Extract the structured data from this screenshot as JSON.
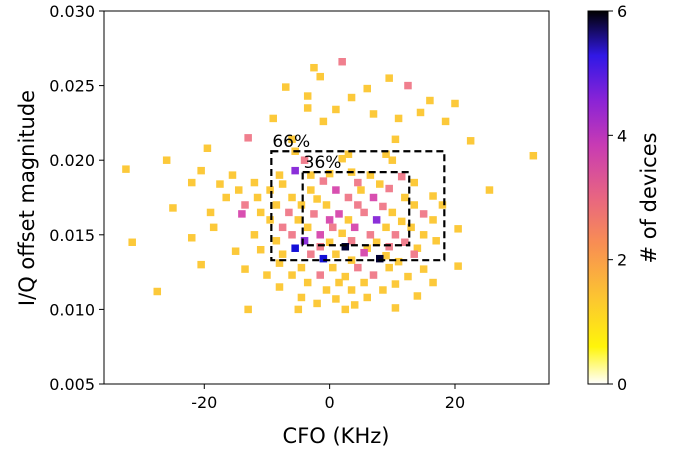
{
  "chart_data": {
    "type": "heatmap",
    "title": "",
    "xlabel": "CFO (KHz)",
    "ylabel": "I/Q offset magnitude",
    "xlim": [
      -36,
      35
    ],
    "ylim": [
      0.005,
      0.03
    ],
    "xticks": [
      -20,
      0,
      20
    ],
    "xtick_labels": [
      "-20",
      "0",
      "20"
    ],
    "yticks": [
      0.005,
      0.01,
      0.015,
      0.02,
      0.025,
      0.03
    ],
    "ytick_labels": [
      "0.005",
      "0.010",
      "0.015",
      "0.020",
      "0.025",
      "0.030"
    ],
    "colorbar": {
      "label": "# of devices",
      "min": 0,
      "max": 6,
      "ticks": [
        0,
        2,
        4,
        6
      ],
      "tick_labels": [
        "0",
        "2",
        "4",
        "6"
      ],
      "colormap": "plasma_r"
    },
    "bin_width": 1.2,
    "bin_height": 0.0005,
    "cells": [
      [
        2.0,
        0.0266,
        2
      ],
      [
        -2.5,
        0.0262,
        1
      ],
      [
        -1.5,
        0.0256,
        1
      ],
      [
        9.5,
        0.0255,
        1
      ],
      [
        12.5,
        0.025,
        2
      ],
      [
        -7.0,
        0.0249,
        1
      ],
      [
        6.0,
        0.0248,
        1
      ],
      [
        -3.5,
        0.0243,
        1
      ],
      [
        3.5,
        0.0242,
        1
      ],
      [
        16.0,
        0.024,
        1
      ],
      [
        20.0,
        0.0238,
        1
      ],
      [
        -3.5,
        0.0235,
        1
      ],
      [
        1.0,
        0.0234,
        1
      ],
      [
        7.0,
        0.0231,
        1
      ],
      [
        14.5,
        0.0232,
        1
      ],
      [
        -9.0,
        0.0228,
        1
      ],
      [
        -1.0,
        0.0226,
        1
      ],
      [
        11.0,
        0.0228,
        1
      ],
      [
        18.5,
        0.0226,
        1
      ],
      [
        -13.0,
        0.0215,
        2
      ],
      [
        -6.0,
        0.0214,
        1
      ],
      [
        10.5,
        0.0214,
        1
      ],
      [
        22.5,
        0.0213,
        1
      ],
      [
        -19.5,
        0.0208,
        1
      ],
      [
        -5.5,
        0.0206,
        1
      ],
      [
        3.0,
        0.0204,
        1
      ],
      [
        9.0,
        0.0204,
        1
      ],
      [
        -26.0,
        0.02,
        1
      ],
      [
        -4.0,
        0.02,
        2
      ],
      [
        2.0,
        0.0201,
        1
      ],
      [
        10.0,
        0.02,
        1
      ],
      [
        32.5,
        0.0203,
        1
      ],
      [
        -32.5,
        0.0194,
        1
      ],
      [
        -20.5,
        0.0193,
        1
      ],
      [
        -15.5,
        0.019,
        1
      ],
      [
        -8.0,
        0.019,
        1
      ],
      [
        -5.5,
        0.0193,
        4
      ],
      [
        -3.0,
        0.019,
        1
      ],
      [
        0.0,
        0.0191,
        1
      ],
      [
        3.5,
        0.0192,
        1
      ],
      [
        6.5,
        0.019,
        1
      ],
      [
        11.5,
        0.0189,
        2
      ],
      [
        -22.0,
        0.0185,
        1
      ],
      [
        -17.5,
        0.0184,
        1
      ],
      [
        -12.0,
        0.0185,
        1
      ],
      [
        -7.5,
        0.0184,
        1
      ],
      [
        -1.0,
        0.0186,
        2
      ],
      [
        4.5,
        0.0185,
        2
      ],
      [
        8.0,
        0.0184,
        1
      ],
      [
        13.5,
        0.0185,
        1
      ],
      [
        -14.5,
        0.018,
        1
      ],
      [
        -9.5,
        0.018,
        1
      ],
      [
        -3.0,
        0.018,
        1
      ],
      [
        1.0,
        0.018,
        3
      ],
      [
        5.0,
        0.018,
        1
      ],
      [
        9.5,
        0.0181,
        2
      ],
      [
        25.5,
        0.018,
        1
      ],
      [
        -16.5,
        0.0175,
        1
      ],
      [
        -11.5,
        0.0175,
        1
      ],
      [
        -6.0,
        0.0175,
        1
      ],
      [
        -2.0,
        0.0174,
        1
      ],
      [
        3.0,
        0.0175,
        2
      ],
      [
        7.0,
        0.0175,
        3
      ],
      [
        12.0,
        0.0175,
        1
      ],
      [
        16.5,
        0.0176,
        1
      ],
      [
        -13.5,
        0.017,
        2
      ],
      [
        -8.5,
        0.017,
        1
      ],
      [
        -4.5,
        0.017,
        1
      ],
      [
        -0.5,
        0.017,
        1
      ],
      [
        4.5,
        0.017,
        2
      ],
      [
        8.5,
        0.0169,
        2
      ],
      [
        13.5,
        0.017,
        1
      ],
      [
        18.0,
        0.017,
        1
      ],
      [
        -25.0,
        0.0168,
        1
      ],
      [
        -19.0,
        0.0165,
        1
      ],
      [
        -14.0,
        0.0164,
        3
      ],
      [
        -11.0,
        0.0165,
        1
      ],
      [
        -6.5,
        0.0165,
        2
      ],
      [
        -2.5,
        0.0164,
        2
      ],
      [
        1.5,
        0.0164,
        3
      ],
      [
        5.5,
        0.0165,
        2
      ],
      [
        10.0,
        0.0165,
        1
      ],
      [
        15.0,
        0.0164,
        2
      ],
      [
        -9.5,
        0.016,
        1
      ],
      [
        -5.0,
        0.016,
        1
      ],
      [
        0.0,
        0.016,
        3
      ],
      [
        3.0,
        0.016,
        1
      ],
      [
        7.5,
        0.016,
        4
      ],
      [
        11.5,
        0.0159,
        1
      ],
      [
        16.5,
        0.016,
        1
      ],
      [
        -18.5,
        0.0155,
        1
      ],
      [
        -7.5,
        0.0155,
        2
      ],
      [
        -3.5,
        0.0155,
        1
      ],
      [
        0.5,
        0.0155,
        2
      ],
      [
        4.0,
        0.0155,
        3
      ],
      [
        9.0,
        0.0155,
        1
      ],
      [
        13.0,
        0.0155,
        1
      ],
      [
        20.5,
        0.0154,
        1
      ],
      [
        -12.0,
        0.015,
        1
      ],
      [
        -6.0,
        0.015,
        2
      ],
      [
        -1.5,
        0.015,
        3
      ],
      [
        2.0,
        0.0151,
        1
      ],
      [
        6.5,
        0.015,
        2
      ],
      [
        10.5,
        0.015,
        2
      ],
      [
        15.0,
        0.015,
        1
      ],
      [
        -22.0,
        0.0148,
        1
      ],
      [
        -8.5,
        0.0146,
        1
      ],
      [
        -4.0,
        0.0146,
        4
      ],
      [
        0.0,
        0.0145,
        1
      ],
      [
        3.5,
        0.0146,
        2
      ],
      [
        7.5,
        0.0145,
        1
      ],
      [
        12.0,
        0.0145,
        2
      ],
      [
        17.0,
        0.0146,
        1
      ],
      [
        -31.5,
        0.0145,
        1
      ],
      [
        -5.5,
        0.0141,
        5
      ],
      [
        -1.5,
        0.0142,
        2
      ],
      [
        2.5,
        0.0142,
        6
      ],
      [
        6.0,
        0.0141,
        1
      ],
      [
        9.5,
        0.0142,
        2
      ],
      [
        14.0,
        0.0141,
        1
      ],
      [
        -11.0,
        0.014,
        1
      ],
      [
        -15.0,
        0.0139,
        1
      ],
      [
        -7.5,
        0.0137,
        1
      ],
      [
        -3.0,
        0.0137,
        2
      ],
      [
        1.0,
        0.0137,
        1
      ],
      [
        5.5,
        0.0138,
        3
      ],
      [
        9.0,
        0.0136,
        1
      ],
      [
        13.5,
        0.0137,
        2
      ],
      [
        -1.0,
        0.0134,
        5
      ],
      [
        3.5,
        0.0133,
        1
      ],
      [
        8.0,
        0.0134,
        6
      ],
      [
        11.0,
        0.0132,
        1
      ],
      [
        -8.0,
        0.0131,
        1
      ],
      [
        -20.5,
        0.013,
        1
      ],
      [
        -13.5,
        0.0127,
        1
      ],
      [
        -4.5,
        0.0128,
        1
      ],
      [
        0.5,
        0.0128,
        1
      ],
      [
        4.5,
        0.0128,
        2
      ],
      [
        9.5,
        0.0128,
        1
      ],
      [
        15.0,
        0.0127,
        1
      ],
      [
        20.5,
        0.0129,
        1
      ],
      [
        -10.0,
        0.0123,
        1
      ],
      [
        -6.0,
        0.0123,
        1
      ],
      [
        -1.5,
        0.0123,
        2
      ],
      [
        2.5,
        0.0122,
        1
      ],
      [
        7.0,
        0.0123,
        2
      ],
      [
        12.5,
        0.0122,
        1
      ],
      [
        -3.5,
        0.0118,
        1
      ],
      [
        1.5,
        0.0118,
        1
      ],
      [
        5.5,
        0.0118,
        1
      ],
      [
        10.5,
        0.0117,
        1
      ],
      [
        16.5,
        0.0118,
        1
      ],
      [
        -8.0,
        0.0115,
        1
      ],
      [
        -0.5,
        0.0113,
        1
      ],
      [
        3.5,
        0.0113,
        1
      ],
      [
        8.5,
        0.0113,
        1
      ],
      [
        -27.5,
        0.0112,
        1
      ],
      [
        -4.5,
        0.0108,
        1
      ],
      [
        1.0,
        0.0107,
        1
      ],
      [
        6.0,
        0.0108,
        1
      ],
      [
        14.0,
        0.0109,
        1
      ],
      [
        -2.0,
        0.0104,
        1
      ],
      [
        4.0,
        0.0103,
        1
      ],
      [
        -13.0,
        0.01,
        1
      ],
      [
        -5.0,
        0.01,
        1
      ],
      [
        2.5,
        0.01,
        1
      ],
      [
        10.5,
        0.0101,
        1
      ]
    ],
    "annotations": [
      {
        "label": "66%",
        "rect": {
          "x0": -9.3,
          "x1": 18.3,
          "y0": 0.0133,
          "y1": 0.0206
        }
      },
      {
        "label": "36%",
        "rect": {
          "x0": -4.3,
          "x1": 12.7,
          "y0": 0.0143,
          "y1": 0.0192
        }
      }
    ],
    "grid": false,
    "legend": "colorbar-right"
  }
}
